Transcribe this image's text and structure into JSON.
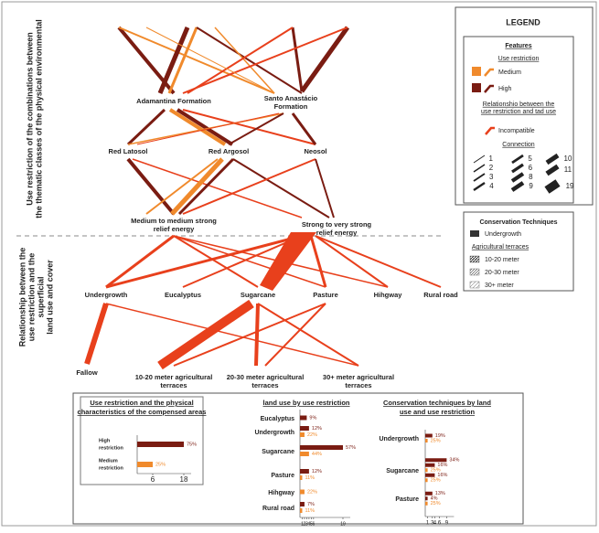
{
  "diagram": {
    "side_labels": [
      [
        "Use restriction of the combinations between",
        "the thematic classes of the physical environmental"
      ],
      [
        "Relationship between the",
        "use restriction and the",
        "superficial",
        "land use and cover"
      ]
    ],
    "nodes": [
      {
        "label": [
          "Adamantina Formation"
        ]
      },
      {
        "label": [
          "Santo Anastácio",
          "Formation"
        ]
      },
      {
        "label": [
          "Red Latosol"
        ]
      },
      {
        "label": [
          "Red Argosol"
        ]
      },
      {
        "label": [
          "Neosol"
        ]
      },
      {
        "label": [
          "Medium to medium strong",
          "relief energy"
        ]
      },
      {
        "label": [
          "Strong to very strong",
          "relief energy"
        ]
      },
      {
        "label": [
          "Undergrowth"
        ]
      },
      {
        "label": [
          "Eucalyptus"
        ]
      },
      {
        "label": [
          "Sugarcane"
        ]
      },
      {
        "label": [
          "Pasture"
        ]
      },
      {
        "label": [
          "Hihgway"
        ]
      },
      {
        "label": [
          "Rural road"
        ]
      },
      {
        "label": [
          "Fallow"
        ]
      },
      {
        "label": [
          "10-20 meter agricultural",
          "terraces"
        ]
      },
      {
        "label": [
          "20-30 meter agricultural",
          "terraces"
        ]
      },
      {
        "label": [
          "30+ meter agricultural",
          "terraces"
        ]
      }
    ]
  },
  "legend": {
    "title": "LEGEND",
    "features": "Features",
    "use_restriction": "Use restriction",
    "medium": "Medium",
    "high": "High",
    "relationship": [
      "Relationshio between the",
      "use restriction and tad use"
    ],
    "incompatible": "Incompatible",
    "connection": "Connection",
    "connection_counts": [
      1,
      2,
      3,
      4,
      5,
      6,
      8,
      9,
      10,
      11,
      19
    ],
    "conservation_title": "Conservation Techniques",
    "undergrowth": "Undergrowth",
    "terraces": "Agricultural terraces",
    "terrace_classes": [
      "10-20 meter",
      "20-30 meter",
      "30+ meter"
    ]
  },
  "colors": {
    "high": "#7a1c12",
    "medium": "#f08a2c"
  },
  "panels": [
    {
      "title": [
        "Use restriction and the physical",
        "characteristics of the compensed areas"
      ],
      "ticks": [
        6,
        18
      ],
      "rows": [
        {
          "label": [
            "High",
            "restriction"
          ],
          "bars": [
            {
              "level": "high",
              "count": 18,
              "percent": "75%"
            }
          ]
        },
        {
          "label": [
            "Medium",
            "restriction"
          ],
          "bars": [
            {
              "level": "medium",
              "count": 6,
              "percent": "25%"
            }
          ]
        }
      ]
    },
    {
      "title": [
        "land use by use restriction"
      ],
      "ticks": [
        1,
        2,
        3,
        4,
        5,
        6,
        19
      ],
      "rows": [
        {
          "label": [
            "Eucalyptus"
          ],
          "bars": [
            {
              "level": "high",
              "count": 3,
              "percent": "9%"
            }
          ]
        },
        {
          "label": [
            "Undergrowth"
          ],
          "bars": [
            {
              "level": "high",
              "count": 4,
              "percent": "12%"
            },
            {
              "level": "medium",
              "count": 2,
              "percent": "22%"
            }
          ]
        },
        {
          "label": [
            "Sugarcane"
          ],
          "bars": [
            {
              "level": "high",
              "count": 19,
              "percent": "57%"
            },
            {
              "level": "medium",
              "count": 4,
              "percent": "44%"
            }
          ]
        },
        {
          "label": [
            "Pasture"
          ],
          "bars": [
            {
              "level": "high",
              "count": 4,
              "percent": "12%"
            },
            {
              "level": "medium",
              "count": 1,
              "percent": "11%"
            }
          ]
        },
        {
          "label": [
            "Hihgway"
          ],
          "bars": [
            {
              "level": "medium",
              "count": 2,
              "percent": "22%"
            }
          ]
        },
        {
          "label": [
            "Rural road"
          ],
          "bars": [
            {
              "level": "high",
              "count": 2,
              "percent": "7%"
            },
            {
              "level": "medium",
              "count": 1,
              "percent": "11%"
            }
          ]
        }
      ]
    },
    {
      "title": [
        "Conservation techniques by land",
        "use and use restriction"
      ],
      "ticks": [
        1,
        3,
        4,
        6,
        9
      ],
      "rows": [
        {
          "label": [
            "Undergrowth"
          ],
          "bars": [
            {
              "level": "high",
              "count": 3,
              "percent": "19%"
            },
            {
              "level": "medium",
              "count": 1,
              "percent": "25%"
            }
          ]
        },
        {
          "label": [
            "Sugarcane"
          ],
          "bars": [
            {
              "level": "high",
              "count": 9,
              "percent": "34%"
            },
            {
              "level": "high",
              "count": 4,
              "percent": "16%"
            },
            {
              "level": "medium",
              "count": 1,
              "percent": "25%"
            },
            {
              "level": "high",
              "count": 4,
              "percent": "16%"
            },
            {
              "level": "medium",
              "count": 1,
              "percent": "25%"
            }
          ]
        },
        {
          "label": [
            "Pasture"
          ],
          "bars": [
            {
              "level": "high",
              "count": 3,
              "percent": "13%"
            },
            {
              "level": "high",
              "count": 1,
              "percent": "4%"
            },
            {
              "level": "medium",
              "count": 1,
              "percent": "25%"
            }
          ]
        }
      ]
    }
  ]
}
